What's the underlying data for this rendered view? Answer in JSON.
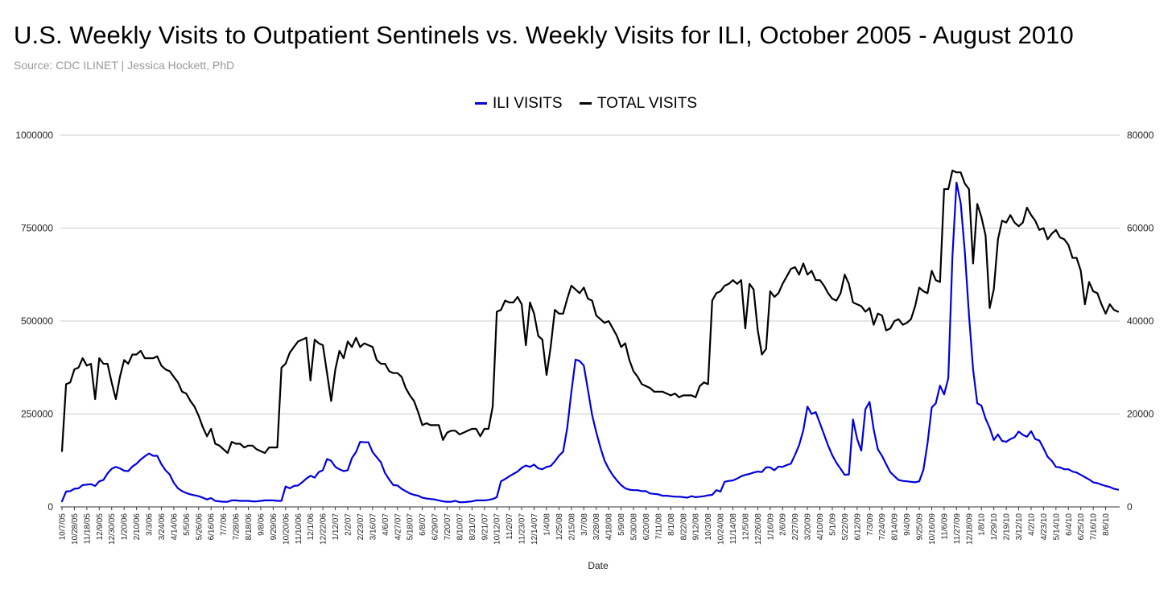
{
  "chart_data": {
    "type": "line",
    "title": "U.S. Weekly Visits to Outpatient Sentinels vs. Weekly Visits for ILI, October 2005 - August 2010",
    "subtitle": "Source: CDC ILINET | Jessica Hockett, PhD",
    "xlabel": "Date",
    "legend_position": "top-center",
    "grid": true,
    "left_axis": {
      "range": [
        0,
        1000000
      ],
      "ticks": [
        0,
        250000,
        500000,
        750000,
        1000000
      ],
      "series": "TOTAL VISITS"
    },
    "right_axis": {
      "range": [
        0,
        80000
      ],
      "ticks": [
        0,
        20000,
        40000,
        60000,
        80000
      ],
      "series": "ILI VISITS"
    },
    "x_tick_labels": [
      "10/7/05",
      "10/28/05",
      "11/18/05",
      "12/9/05",
      "12/30/05",
      "1/20/06",
      "2/10/06",
      "3/3/06",
      "3/24/06",
      "4/14/06",
      "5/5/06",
      "5/26/06",
      "6/16/06",
      "7/7/06",
      "7/28/06",
      "8/18/06",
      "9/8/06",
      "9/29/06",
      "10/20/06",
      "11/10/06",
      "12/1/06",
      "12/22/06",
      "1/12/07",
      "2/2/07",
      "2/23/07",
      "3/16/07",
      "4/6/07",
      "4/27/07",
      "5/18/07",
      "6/8/07",
      "6/29/07",
      "7/20/07",
      "8/10/07",
      "8/31/07",
      "9/21/07",
      "10/12/07",
      "11/2/07",
      "11/23/07",
      "12/14/07",
      "1/4/08",
      "1/25/08",
      "2/15/08",
      "3/7/08",
      "3/28/08",
      "4/18/08",
      "5/9/08",
      "5/30/08",
      "6/20/08",
      "7/11/08",
      "8/1/08",
      "8/22/08",
      "9/12/08",
      "10/3/08",
      "10/24/08",
      "11/14/08",
      "12/5/08",
      "12/26/08",
      "1/16/09",
      "2/6/09",
      "2/27/09",
      "3/20/09",
      "4/10/09",
      "5/1/09",
      "5/22/09",
      "6/12/09",
      "7/3/09",
      "7/24/09",
      "8/14/09",
      "9/4/09",
      "9/25/09",
      "10/16/09",
      "11/6/09",
      "11/27/09",
      "12/18/09",
      "1/8/10",
      "1/29/10",
      "2/19/10",
      "3/12/10",
      "4/2/10",
      "4/23/10",
      "5/14/10",
      "6/4/10",
      "6/25/10",
      "7/16/10",
      "8/6/10"
    ],
    "series": [
      {
        "name": "ILI VISITS",
        "color": "#0000dd",
        "axis": "right",
        "values": [
          1200,
          3300,
          3400,
          3900,
          4000,
          4700,
          4800,
          4900,
          4500,
          5500,
          5800,
          7200,
          8200,
          8600,
          8300,
          7800,
          7700,
          8700,
          9300,
          10200,
          10900,
          11500,
          11000,
          11000,
          9200,
          7900,
          7000,
          5200,
          4000,
          3400,
          3000,
          2700,
          2500,
          2300,
          2000,
          1600,
          1900,
          1300,
          1200,
          1100,
          1100,
          1400,
          1400,
          1300,
          1300,
          1300,
          1200,
          1200,
          1300,
          1400,
          1400,
          1400,
          1300,
          1300,
          4400,
          4000,
          4500,
          4600,
          5300,
          6100,
          6700,
          6300,
          7500,
          7900,
          10300,
          9900,
          8600,
          8100,
          7700,
          7900,
          10500,
          11800,
          14000,
          13900,
          13900,
          11800,
          10700,
          9600,
          7300,
          5900,
          4700,
          4600,
          3900,
          3400,
          2900,
          2600,
          2400,
          2000,
          1800,
          1700,
          1600,
          1400,
          1200,
          1100,
          1100,
          1300,
          1000,
          1000,
          1100,
          1200,
          1400,
          1400,
          1400,
          1500,
          1700,
          2100,
          5500,
          6000,
          6600,
          7100,
          7600,
          8400,
          8900,
          8600,
          9100,
          8300,
          8100,
          8600,
          8800,
          9800,
          11000,
          11900,
          17000,
          24700,
          31700,
          31400,
          30400,
          25200,
          19800,
          16100,
          12800,
          10000,
          8200,
          6800,
          5700,
          4700,
          4000,
          3700,
          3600,
          3600,
          3400,
          3400,
          2900,
          2800,
          2700,
          2400,
          2400,
          2300,
          2200,
          2200,
          2100,
          2000,
          2300,
          2100,
          2200,
          2300,
          2500,
          2600,
          3600,
          3300,
          5400,
          5600,
          5700,
          6100,
          6600,
          6900,
          7100,
          7400,
          7600,
          7500,
          8500,
          8500,
          7900,
          8700,
          8600,
          9000,
          9300,
          11200,
          13300,
          16500,
          21600,
          20000,
          20400,
          18000,
          15600,
          13200,
          11100,
          9500,
          8200,
          6900,
          7000,
          18800,
          14600,
          12100,
          21000,
          22600,
          16700,
          12400,
          11000,
          9200,
          7500,
          6600,
          5800,
          5600,
          5500,
          5400,
          5300,
          5500,
          8000,
          13700,
          21400,
          22300,
          26100,
          24200,
          27700,
          53800,
          69800,
          65400,
          55000,
          41300,
          29600,
          22300,
          21800,
          19000,
          17000,
          14400,
          15600,
          14200,
          14000,
          14600,
          15000,
          16200,
          15500,
          15100,
          16300,
          14600,
          14300,
          12600,
          10800,
          9900,
          8600,
          8500,
          8100,
          8100,
          7600,
          7400,
          6900,
          6400,
          5900,
          5300,
          5100,
          4800,
          4500,
          4300,
          3900,
          3700
        ]
      },
      {
        "name": "TOTAL VISITS",
        "color": "#000000",
        "axis": "left",
        "values": [
          150000,
          330000,
          335000,
          370000,
          375000,
          400000,
          380000,
          385000,
          290000,
          400000,
          385000,
          385000,
          335000,
          290000,
          350000,
          395000,
          385000,
          410000,
          410000,
          420000,
          400000,
          400000,
          400000,
          405000,
          380000,
          370000,
          365000,
          350000,
          335000,
          310000,
          305000,
          285000,
          270000,
          245000,
          215000,
          190000,
          210000,
          170000,
          165000,
          155000,
          145000,
          175000,
          170000,
          170000,
          160000,
          165000,
          165000,
          155000,
          150000,
          145000,
          160000,
          160000,
          160000,
          375000,
          385000,
          415000,
          430000,
          445000,
          450000,
          455000,
          340000,
          450000,
          440000,
          435000,
          360000,
          285000,
          370000,
          420000,
          400000,
          445000,
          430000,
          455000,
          430000,
          440000,
          435000,
          430000,
          395000,
          385000,
          385000,
          365000,
          360000,
          360000,
          350000,
          320000,
          300000,
          285000,
          255000,
          220000,
          225000,
          220000,
          220000,
          220000,
          180000,
          200000,
          205000,
          205000,
          195000,
          200000,
          205000,
          210000,
          210000,
          190000,
          210000,
          210000,
          270000,
          525000,
          530000,
          555000,
          550000,
          550000,
          565000,
          545000,
          435000,
          550000,
          520000,
          460000,
          450000,
          355000,
          430000,
          530000,
          520000,
          520000,
          560000,
          595000,
          585000,
          575000,
          590000,
          560000,
          555000,
          515000,
          505000,
          495000,
          500000,
          480000,
          460000,
          430000,
          440000,
          395000,
          365000,
          350000,
          330000,
          325000,
          320000,
          310000,
          310000,
          310000,
          305000,
          300000,
          305000,
          295000,
          300000,
          300000,
          300000,
          295000,
          325000,
          335000,
          330000,
          555000,
          575000,
          580000,
          595000,
          600000,
          610000,
          600000,
          610000,
          480000,
          600000,
          585000,
          475000,
          410000,
          425000,
          580000,
          565000,
          575000,
          600000,
          620000,
          640000,
          645000,
          625000,
          655000,
          625000,
          635000,
          610000,
          610000,
          595000,
          575000,
          560000,
          555000,
          575000,
          625000,
          600000,
          550000,
          545000,
          540000,
          525000,
          535000,
          490000,
          520000,
          515000,
          475000,
          480000,
          500000,
          505000,
          490000,
          495000,
          505000,
          540000,
          590000,
          580000,
          575000,
          635000,
          610000,
          605000,
          855000,
          855000,
          905000,
          900000,
          900000,
          870000,
          855000,
          655000,
          815000,
          780000,
          730000,
          535000,
          585000,
          720000,
          770000,
          765000,
          785000,
          765000,
          755000,
          765000,
          805000,
          785000,
          770000,
          745000,
          750000,
          720000,
          735000,
          745000,
          725000,
          720000,
          705000,
          670000,
          670000,
          635000,
          545000,
          605000,
          580000,
          575000,
          545000,
          520000,
          545000,
          530000,
          525000
        ]
      }
    ]
  }
}
